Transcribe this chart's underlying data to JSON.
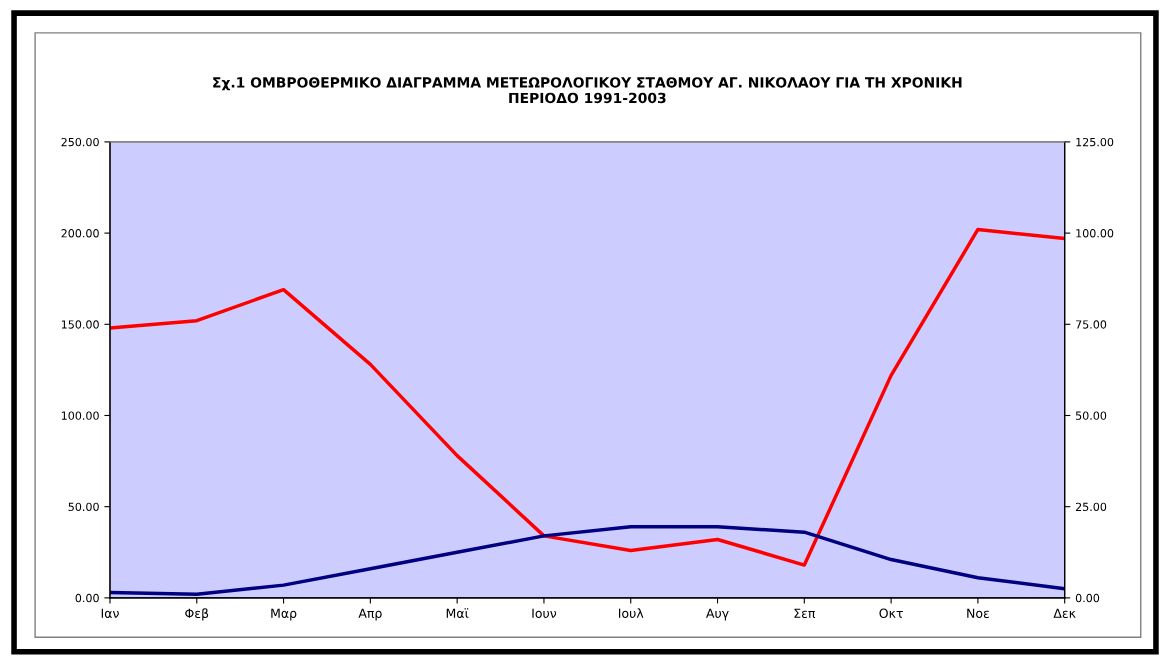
{
  "chart_data": {
    "type": "line",
    "title": "Σχ.1 ΟΜΒΡΟΘΕΡΜΙΚΟ ΔΙΑΓΡΑΜΜΑ ΜΕΤΕΩΡΟΛΟΓΙΚΟΥ ΣΤΑΘΜΟΥ ΑΓ. ΝΙΚΟΛΑΟΥ ΓΙΑ ΤΗ ΧΡΟΝΙΚΗ\nΠΕΡΙΟΔΟ 1991-2003",
    "categories": [
      "Ιαν",
      "Φεβ",
      "Μαρ",
      "Απρ",
      "Μαϊ",
      "Ιουν",
      "Ιουλ",
      "Αυγ",
      "Σεπ",
      "Οκτ",
      "Νοε",
      "Δεκ"
    ],
    "series": [
      {
        "color": "#ff0000",
        "values": [
          148,
          152,
          169,
          128,
          78,
          34,
          26,
          32,
          18,
          122,
          202,
          197
        ]
      },
      {
        "color": "#000080",
        "values": [
          3,
          2,
          7,
          16,
          25,
          34,
          39,
          39,
          36,
          21,
          11,
          5
        ]
      }
    ],
    "ylim": [
      0,
      250
    ],
    "yticks": [
      {
        "value": 0,
        "label": "0.00"
      },
      {
        "value": 50,
        "label": "50.00"
      },
      {
        "value": 100,
        "label": "100.00"
      },
      {
        "value": 150,
        "label": "150.00"
      },
      {
        "value": 200,
        "label": "200.00"
      },
      {
        "value": 250,
        "label": "250.00"
      }
    ],
    "y2lim": [
      0,
      125
    ],
    "y2ticks": [
      {
        "value": 0,
        "label": "0.00"
      },
      {
        "value": 25,
        "label": "25.00"
      },
      {
        "value": 50,
        "label": "50.00"
      },
      {
        "value": 75,
        "label": "75.00"
      },
      {
        "value": 100,
        "label": "100.00"
      },
      {
        "value": 125,
        "label": "125.00"
      }
    ],
    "grid": false,
    "marker": "none",
    "line_style": "solid"
  }
}
